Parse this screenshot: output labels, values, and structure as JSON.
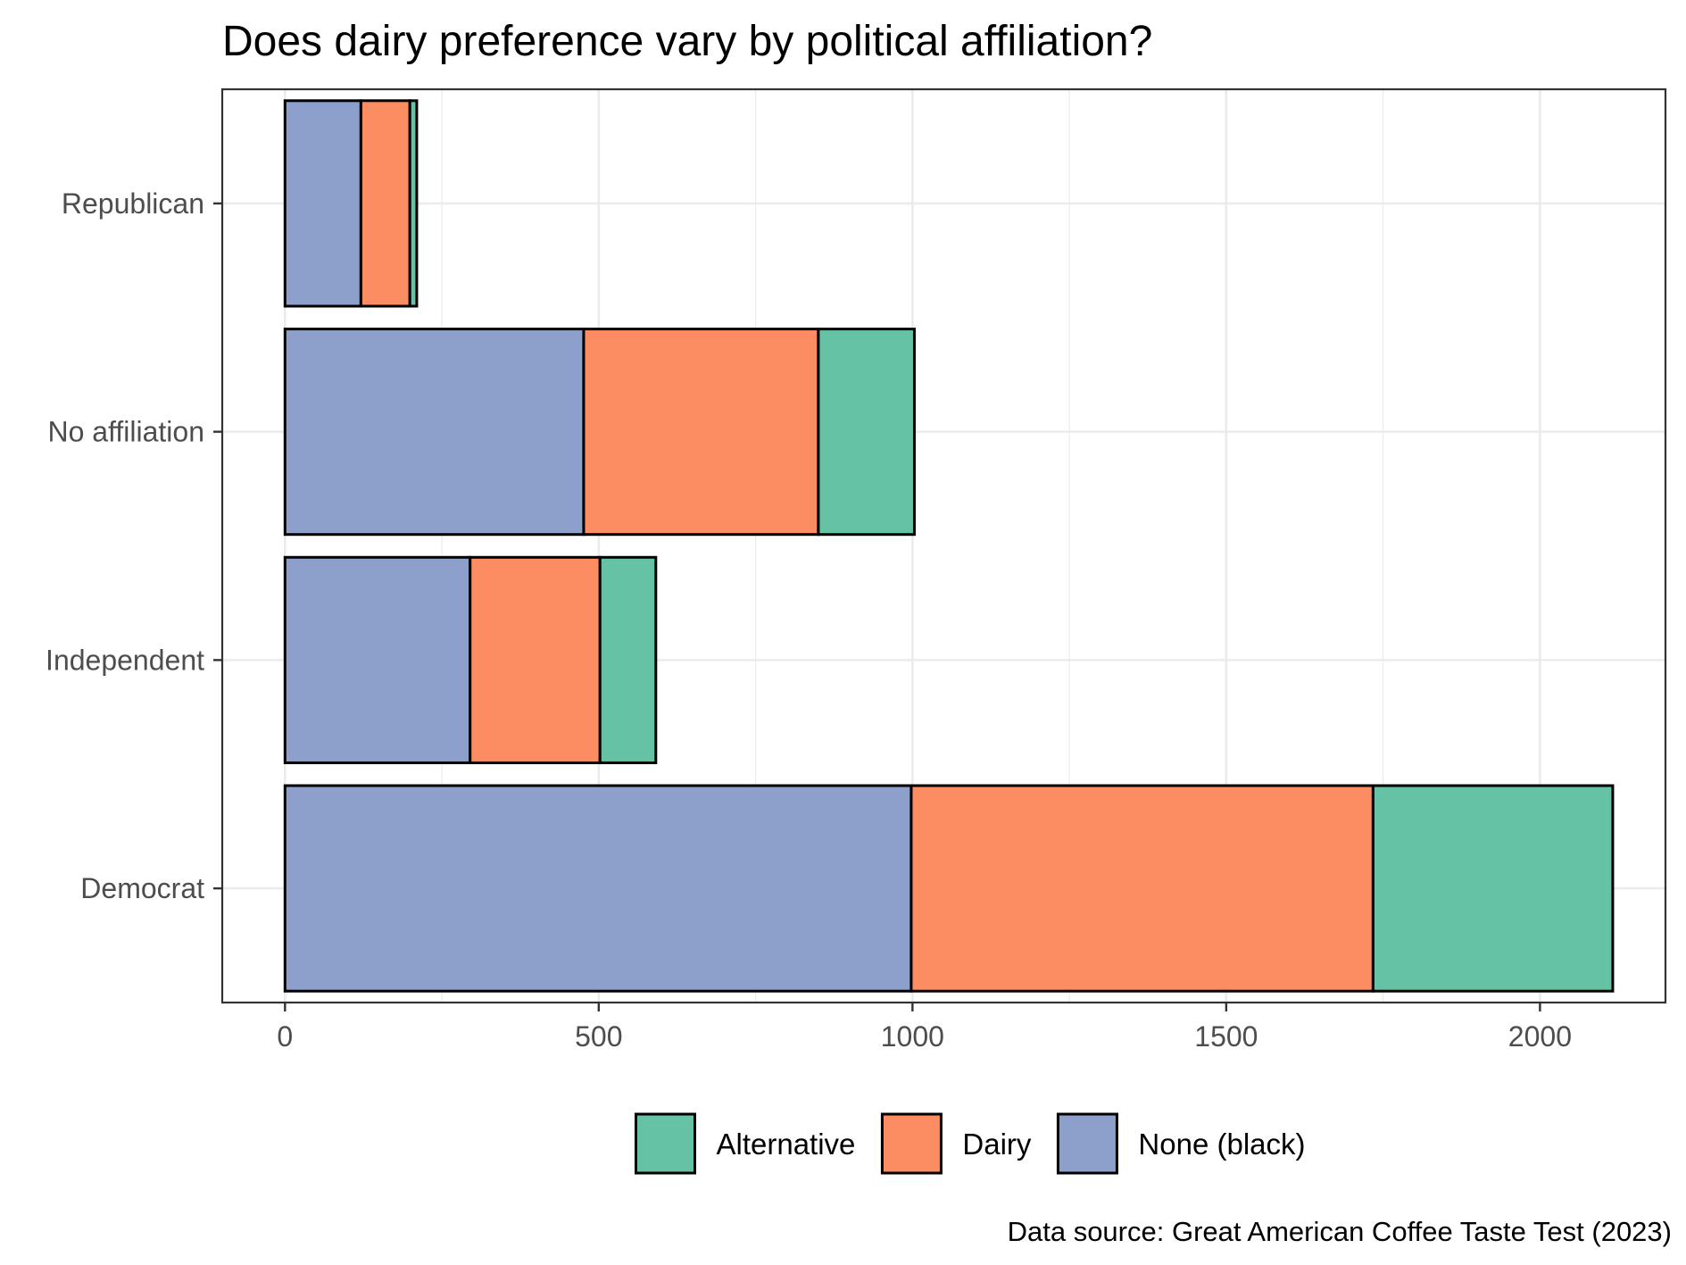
{
  "chart_data": {
    "type": "bar",
    "orientation": "horizontal",
    "stacked": true,
    "title": "Does dairy preference vary by political affiliation?",
    "caption": "Data source: Great American Coffee Taste Test (2023)",
    "xlabel": "",
    "ylabel": "",
    "xlim": [
      -100,
      2200
    ],
    "x_ticks": [
      0,
      500,
      1000,
      1500,
      2000
    ],
    "grid": true,
    "legend_position": "bottom",
    "categories": [
      "Democrat",
      "Independent",
      "No affiliation",
      "Republican"
    ],
    "series": [
      {
        "name": "None (black)",
        "color": "#8DA0CB",
        "values": [
          998,
          295,
          476,
          121
        ]
      },
      {
        "name": "Dairy",
        "color": "#FC8D62",
        "values": [
          736,
          207,
          374,
          78
        ]
      },
      {
        "name": "Alternative",
        "color": "#66C2A5",
        "values": [
          382,
          89,
          153,
          11
        ]
      }
    ],
    "legend_order": [
      "Alternative",
      "Dairy",
      "None (black)"
    ]
  }
}
